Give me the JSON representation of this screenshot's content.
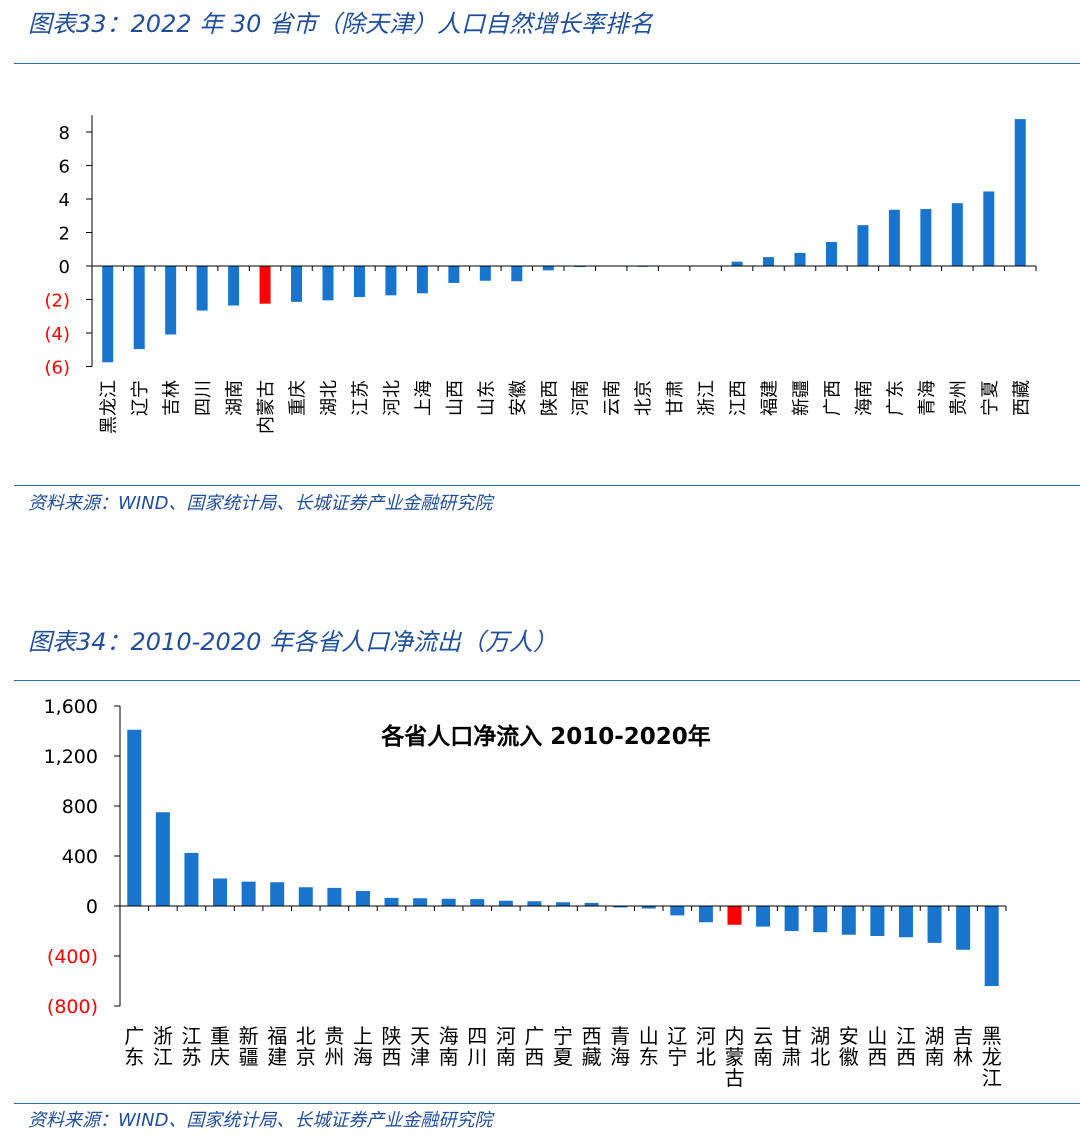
{
  "figure1": {
    "title": "图表33：2022 年 30 省市（除天津）人口自然增长率排名",
    "source": "资料来源：WIND、国家统计局、长城证券产业金融研究院"
  },
  "figure2": {
    "title": "图表34：2010-2020 年各省人口净流出（万人）",
    "source": "资料来源：WIND、国家统计局、长城证券产业金融研究院"
  },
  "colors": {
    "bar": "#1874cd",
    "highlight": "#ff0000",
    "negative_label": "#ff0000",
    "text": "#1f4e9c"
  },
  "chart_data": [
    {
      "type": "bar",
      "title": "",
      "xlabel": "",
      "ylabel": "",
      "ylim": [
        -6,
        9
      ],
      "yticks": [
        8,
        6,
        4,
        2,
        0,
        -2,
        -4,
        -6
      ],
      "ytick_labels": [
        "8",
        "6",
        "4",
        "2",
        "0",
        "(2)",
        "(4)",
        "(6)"
      ],
      "categories": [
        "黑龙江",
        "辽宁",
        "吉林",
        "四川",
        "湖南",
        "内蒙古",
        "重庆",
        "湖北",
        "江苏",
        "河北",
        "上海",
        "山西",
        "山东",
        "安徽",
        "陕西",
        "河南",
        "云南",
        "北京",
        "甘肃",
        "浙江",
        "江西",
        "福建",
        "新疆",
        "广西",
        "海南",
        "广东",
        "青海",
        "贵州",
        "宁夏",
        "西藏"
      ],
      "values": [
        -5.75,
        -4.96,
        -4.09,
        -2.66,
        -2.36,
        -2.25,
        -2.14,
        -2.05,
        -1.85,
        -1.75,
        -1.63,
        -1.01,
        -0.88,
        -0.91,
        -0.26,
        -0.06,
        -0.03,
        -0.05,
        -0.02,
        0.0,
        0.26,
        0.53,
        0.78,
        1.43,
        2.44,
        3.36,
        3.4,
        3.75,
        4.45,
        8.77
      ],
      "highlight": "内蒙古"
    },
    {
      "type": "bar",
      "title": "各省人口净流入 2010-2020年",
      "xlabel": "",
      "ylabel": "",
      "ylim": [
        -800,
        1600
      ],
      "yticks": [
        1600,
        1200,
        800,
        400,
        0,
        -400,
        -800
      ],
      "ytick_labels": [
        "1,600",
        "1,200",
        "800",
        "400",
        "0",
        "(400)",
        "(800)"
      ],
      "categories": [
        "广东",
        "浙江",
        "江苏",
        "重庆",
        "新疆",
        "福建",
        "北京",
        "贵州",
        "上海",
        "陕西",
        "天津",
        "海南",
        "四川",
        "河南",
        "广西",
        "宁夏",
        "西藏",
        "青海",
        "山东",
        "辽宁",
        "河北",
        "内蒙古",
        "云南",
        "甘肃",
        "湖北",
        "安徽",
        "山西",
        "江西",
        "湖南",
        "吉林",
        "黑龙江"
      ],
      "values": [
        1410,
        750,
        425,
        220,
        195,
        190,
        150,
        145,
        120,
        65,
        62,
        58,
        55,
        42,
        38,
        30,
        25,
        -12,
        -20,
        -75,
        -130,
        -150,
        -165,
        -200,
        -210,
        -230,
        -240,
        -250,
        -295,
        -350,
        -640
      ],
      "highlight": "内蒙古"
    }
  ]
}
